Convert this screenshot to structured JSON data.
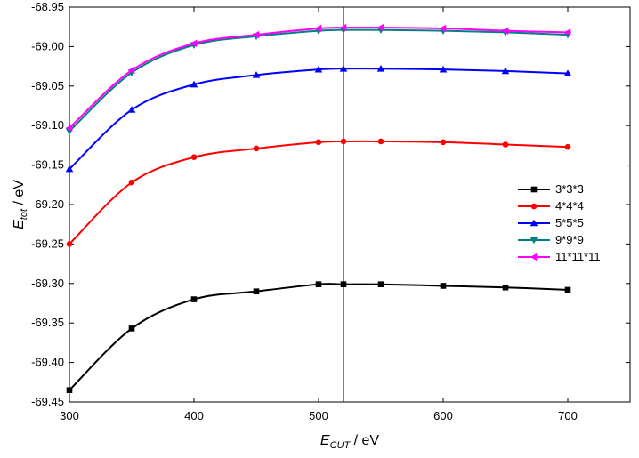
{
  "chart_data": {
    "type": "line",
    "x_label": {
      "main": "E",
      "sub": "CUT",
      "unit": " / eV"
    },
    "y_label": {
      "main": "E",
      "sub": "tot",
      "unit": " / eV"
    },
    "x": [
      300,
      350,
      400,
      450,
      500,
      520,
      550,
      600,
      650,
      700
    ],
    "series": [
      {
        "name": "3*3*3",
        "color": "#000000",
        "marker": "square",
        "values": [
          -69.435,
          -69.357,
          -69.32,
          -69.31,
          -69.301,
          -69.301,
          -69.301,
          -69.303,
          -69.305,
          -69.308
        ]
      },
      {
        "name": "4*4*4",
        "color": "#ff0000",
        "marker": "circle",
        "values": [
          -69.25,
          -69.172,
          -69.14,
          -69.129,
          -69.121,
          -69.12,
          -69.12,
          -69.121,
          -69.124,
          -69.127
        ]
      },
      {
        "name": "5*5*5",
        "color": "#0000ff",
        "marker": "triangle-up",
        "values": [
          -69.155,
          -69.08,
          -69.048,
          -69.036,
          -69.029,
          -69.028,
          -69.028,
          -69.029,
          -69.031,
          -69.034
        ]
      },
      {
        "name": "9*9*9",
        "color": "#008080",
        "marker": "triangle-down",
        "values": [
          -69.107,
          -69.033,
          -68.998,
          -68.987,
          -68.98,
          -68.979,
          -68.979,
          -68.98,
          -68.982,
          -68.985
        ]
      },
      {
        "name": "11*11*11",
        "color": "#ff00ff",
        "marker": "triangle-left",
        "values": [
          -69.103,
          -69.03,
          -68.996,
          -68.985,
          -68.977,
          -68.976,
          -68.976,
          -68.977,
          -68.98,
          -68.982
        ]
      }
    ],
    "vline_x": 520,
    "xlim": [
      300,
      750
    ],
    "xticks": [
      300,
      400,
      500,
      600,
      700
    ],
    "ylim": [
      -69.45,
      -68.95
    ],
    "yticks": [
      {
        "value": -69.45,
        "label": "-69.45"
      },
      {
        "value": -69.4,
        "label": "-69.40"
      },
      -69.35,
      {
        "value": -69.3,
        "label": "-69.30"
      },
      -69.25,
      {
        "value": -69.2,
        "label": "-69.20"
      },
      -69.15,
      {
        "value": -69.1,
        "label": "-69.10"
      },
      -69.05,
      {
        "value": -69.0,
        "label": "-69.00"
      },
      -68.95
    ],
    "legend": "right",
    "grid": false
  }
}
